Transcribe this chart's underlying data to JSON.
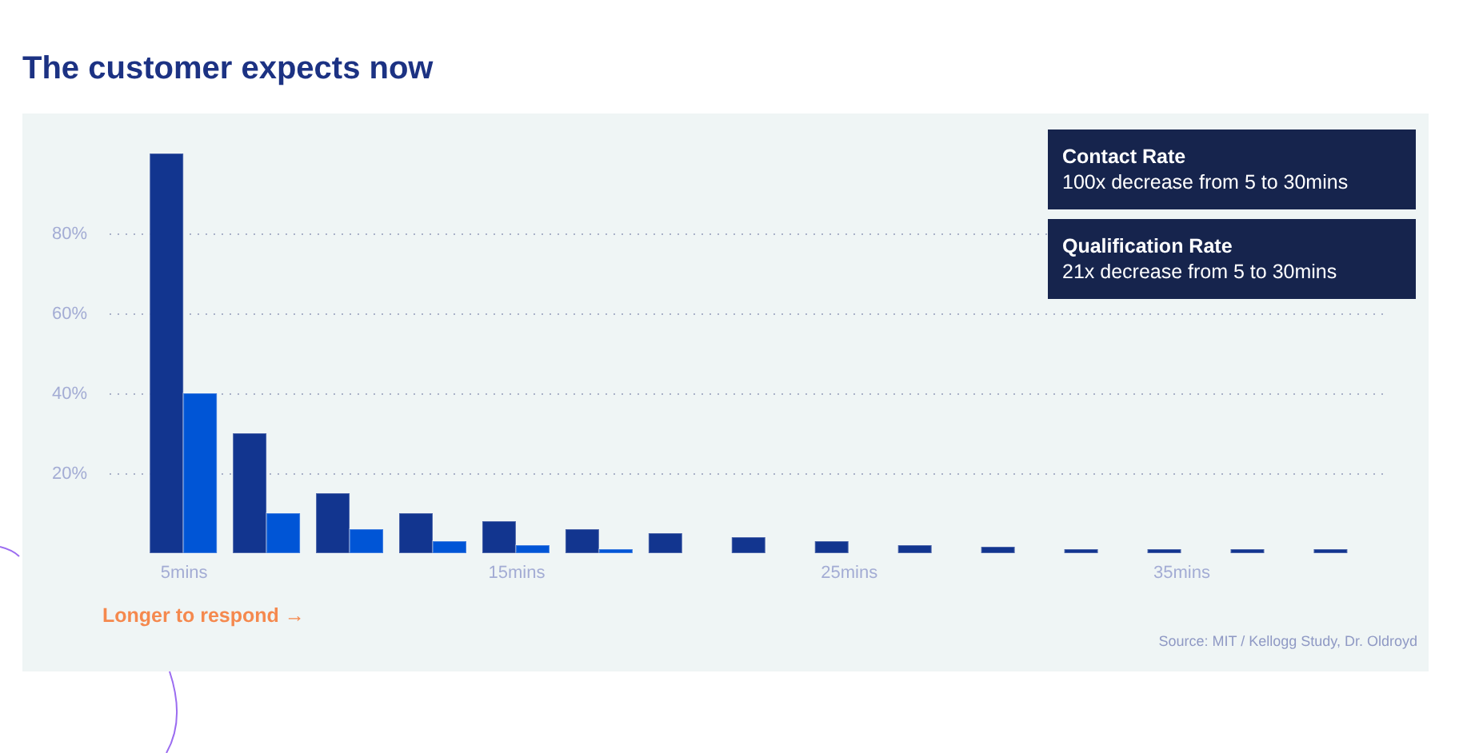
{
  "chart_data": {
    "type": "bar",
    "title": "The customer expects now",
    "x": [
      5,
      7.5,
      10,
      12.5,
      15,
      17.5,
      20,
      22.5,
      25,
      27.5,
      30,
      32.5,
      35,
      37.5,
      40
    ],
    "series": [
      {
        "color": "#12358f",
        "values": [
          100,
          30,
          15,
          10,
          8,
          6,
          5,
          4,
          3,
          2,
          1.6,
          1,
          1,
          1,
          1
        ]
      },
      {
        "color": "#0055d6",
        "values": [
          40,
          10,
          6,
          3,
          2,
          1,
          null,
          null,
          null,
          null,
          null,
          null,
          null,
          null,
          null
        ]
      }
    ],
    "xlim": [
      3,
      41
    ],
    "xticks": [
      {
        "value": 5,
        "label": "5mins"
      },
      {
        "value": 15,
        "label": "15mins"
      },
      {
        "value": 25,
        "label": "25mins"
      },
      {
        "value": 35,
        "label": "35mins"
      }
    ],
    "ylim": [
      0,
      100
    ],
    "yticks": [
      {
        "value": 20,
        "label": "20%"
      },
      {
        "value": 40,
        "label": "40%"
      },
      {
        "value": 60,
        "label": "60%"
      },
      {
        "value": 80,
        "label": "80%"
      }
    ],
    "grid": "y",
    "annotations": [
      "Contact Rate",
      "100x decrease from 5 to 30mins",
      "Qualification Rate",
      "21x decrease from 5 to 30mins",
      "Longer to respond →",
      "Source: MIT / Kellogg Study, Dr. Oldroyd"
    ]
  }
}
